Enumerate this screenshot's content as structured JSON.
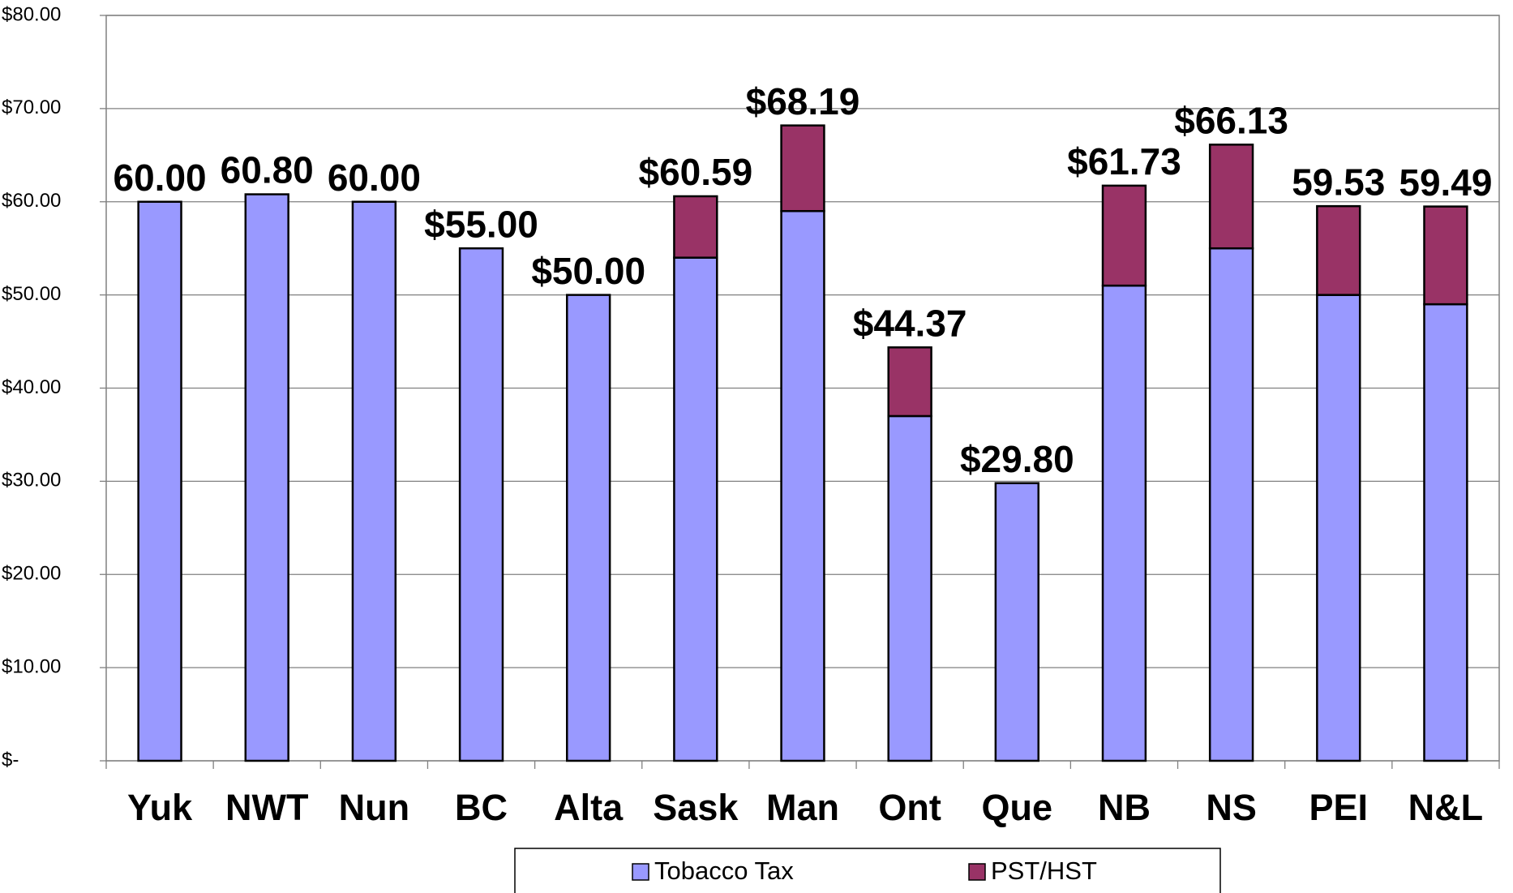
{
  "chart_data": {
    "type": "stacked_bar",
    "categories": [
      "Yuk",
      "NWT",
      "Nun",
      "BC",
      "Alta",
      "Sask",
      "Man",
      "Ont",
      "Que",
      "NB",
      "NS",
      "PEI",
      "N&L"
    ],
    "series": [
      {
        "name": "Tobacco Tax",
        "color": "#9999ff",
        "values": [
          60,
          60.8,
          60,
          55,
          50,
          54,
          59,
          37,
          29.8,
          51,
          55,
          50,
          49
        ]
      },
      {
        "name": "PST/HST",
        "color": "#993366",
        "values": [
          0,
          0,
          0,
          0,
          0,
          6.59,
          9.19,
          7.37,
          0,
          10.73,
          11.13,
          9.53,
          10.49
        ]
      }
    ],
    "totals": [
      60,
      60.8,
      60,
      55,
      50,
      60.59,
      68.19,
      44.37,
      29.8,
      61.73,
      66.13,
      59.53,
      59.49
    ],
    "total_labels": [
      "60.00",
      "60.80",
      "60.00",
      "$55.00",
      "$50.00",
      "$60.59",
      "$68.19",
      "$44.37",
      "$29.80",
      "$61.73",
      "$66.13",
      "59.53",
      "59.49"
    ],
    "ylim": [
      0,
      80
    ],
    "yticks": [
      {
        "value": 0,
        "label": "$-"
      },
      {
        "value": 10,
        "label": "$10.00"
      },
      {
        "value": 20,
        "label": "$20.00"
      },
      {
        "value": 30,
        "label": "$30.00"
      },
      {
        "value": 40,
        "label": "$40.00"
      },
      {
        "value": 50,
        "label": "$50.00"
      },
      {
        "value": 60,
        "label": "$60.00"
      },
      {
        "value": 70,
        "label": "$70.00"
      },
      {
        "value": 80,
        "label": "$80.00"
      }
    ],
    "grid": true
  }
}
